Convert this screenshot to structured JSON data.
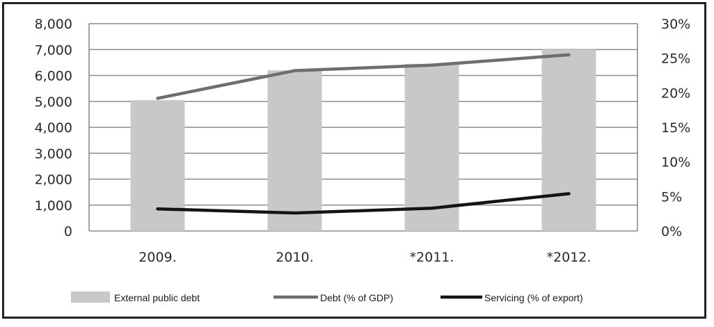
{
  "chart_data": {
    "type": "bar",
    "categories": [
      "2009.",
      "2010.",
      "*2011.",
      "*2012."
    ],
    "ylim_left": [
      0,
      8000
    ],
    "yticks_left": [
      "0",
      "1,000",
      "2,000",
      "3,000",
      "4,000",
      "5,000",
      "6,000",
      "7,000",
      "8,000"
    ],
    "ylim_right": [
      0,
      30
    ],
    "yticks_right": [
      "0%",
      "5%",
      "10%",
      "15%",
      "20%",
      "25%",
      "30%"
    ],
    "grid": true,
    "legend_position": "bottom",
    "series": [
      {
        "name": "External public debt",
        "kind": "bar",
        "axis": "left",
        "values": [
          5050,
          6200,
          6450,
          7000
        ],
        "color": "#c8c8c8"
      },
      {
        "name": "Debt (% of GDP)",
        "kind": "line",
        "axis": "right",
        "values": [
          19.2,
          23.2,
          24.0,
          25.5
        ],
        "color": "#6e6e6e"
      },
      {
        "name": "Servicing (% of export)",
        "kind": "line",
        "axis": "right",
        "values": [
          3.2,
          2.6,
          3.3,
          5.4
        ],
        "color": "#141414"
      }
    ]
  }
}
